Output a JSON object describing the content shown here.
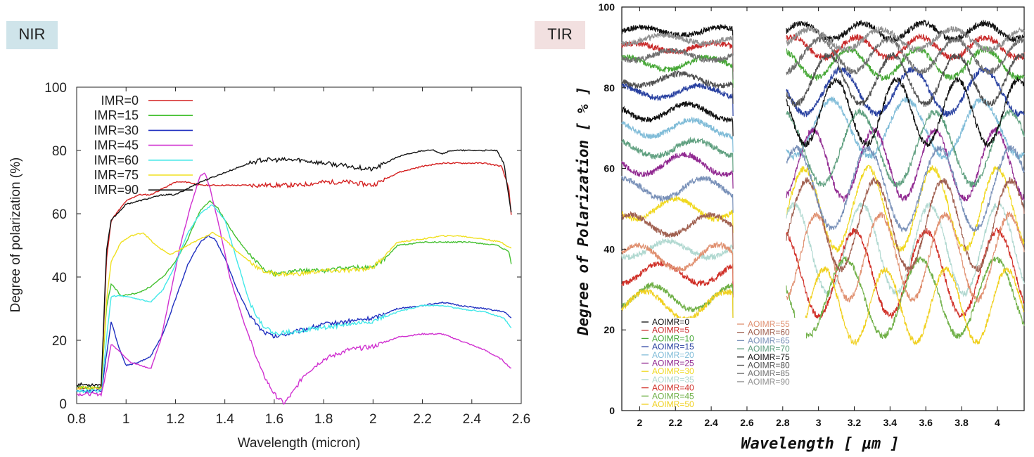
{
  "labels": {
    "nir": "NIR",
    "tir": "TIR"
  },
  "colors": {
    "nir_label_bg": "#cfe4ea",
    "tir_label_bg": "#f2e0e0"
  },
  "chart_data": [
    {
      "type": "line",
      "panel": "NIR",
      "xlabel": "Wavelength (micron)",
      "ylabel": "Degree of polarization (%)",
      "xlim": [
        0.8,
        2.6
      ],
      "ylim": [
        0,
        100
      ],
      "xticks": [
        "0.8",
        "1",
        "1.2",
        "1.4",
        "1.6",
        "1.8",
        "2",
        "2.2",
        "2.4",
        "2.6"
      ],
      "yticks": [
        "0",
        "20",
        "40",
        "60",
        "80",
        "100"
      ],
      "legend_position": "top-left",
      "grid": false,
      "series": [
        {
          "name": "IMR=0",
          "color": "#d42020",
          "x": [
            0.8,
            0.9,
            0.92,
            0.94,
            1.0,
            1.05,
            1.1,
            1.15,
            1.2,
            1.25,
            1.3,
            1.4,
            1.5,
            1.6,
            1.7,
            1.8,
            1.9,
            2.0,
            2.1,
            2.2,
            2.28,
            2.35,
            2.45,
            2.52,
            2.55,
            2.56
          ],
          "y": [
            5,
            5,
            45,
            58,
            64,
            66,
            66,
            68,
            70,
            70,
            69,
            69,
            69,
            69,
            69,
            70,
            70,
            69,
            73,
            75,
            76,
            76,
            76,
            75,
            68,
            59
          ]
        },
        {
          "name": "IMR=15",
          "color": "#44c030",
          "x": [
            0.8,
            0.9,
            0.92,
            0.94,
            0.98,
            1.05,
            1.1,
            1.15,
            1.2,
            1.25,
            1.3,
            1.34,
            1.37,
            1.4,
            1.45,
            1.5,
            1.55,
            1.6,
            1.7,
            1.8,
            1.9,
            2.0,
            2.05,
            2.1,
            2.2,
            2.3,
            2.4,
            2.5,
            2.55,
            2.56
          ],
          "y": [
            5,
            5,
            30,
            38,
            34,
            35,
            37,
            40,
            45,
            52,
            61,
            64,
            62,
            58,
            52,
            47,
            43,
            41,
            42,
            42,
            43,
            43,
            46,
            50,
            51,
            51,
            51,
            50,
            48,
            44
          ]
        },
        {
          "name": "IMR=30",
          "color": "#2030c0",
          "x": [
            0.8,
            0.9,
            0.92,
            0.94,
            0.97,
            1.0,
            1.05,
            1.1,
            1.15,
            1.2,
            1.25,
            1.3,
            1.33,
            1.36,
            1.4,
            1.45,
            1.5,
            1.55,
            1.6,
            1.7,
            1.8,
            1.9,
            2.0,
            2.1,
            2.2,
            2.28,
            2.35,
            2.45,
            2.53,
            2.56
          ],
          "y": [
            4,
            4,
            15,
            26,
            18,
            12,
            13,
            15,
            22,
            33,
            44,
            51,
            53,
            52,
            46,
            36,
            28,
            23,
            21,
            23,
            25,
            26,
            27,
            30,
            31,
            32,
            31,
            30,
            29,
            27
          ]
        },
        {
          "name": "IMR=45",
          "color": "#d030d0",
          "x": [
            0.8,
            0.9,
            0.92,
            0.94,
            0.98,
            1.02,
            1.06,
            1.1,
            1.14,
            1.18,
            1.22,
            1.26,
            1.3,
            1.32,
            1.34,
            1.38,
            1.42,
            1.48,
            1.55,
            1.6,
            1.64,
            1.68,
            1.72,
            1.8,
            1.9,
            2.0,
            2.1,
            2.2,
            2.28,
            2.35,
            2.45,
            2.52,
            2.56
          ],
          "y": [
            3,
            3,
            10,
            19,
            16,
            13,
            12,
            11,
            20,
            35,
            50,
            62,
            72,
            73,
            68,
            55,
            40,
            25,
            10,
            3,
            0,
            4,
            9,
            14,
            17,
            18,
            21,
            22,
            22,
            20,
            17,
            14,
            11
          ]
        },
        {
          "name": "IMR=60",
          "color": "#40e8e8",
          "x": [
            0.8,
            0.9,
            0.92,
            0.94,
            0.98,
            1.05,
            1.1,
            1.15,
            1.2,
            1.25,
            1.3,
            1.35,
            1.4,
            1.45,
            1.5,
            1.55,
            1.6,
            1.7,
            1.8,
            1.9,
            2.0,
            2.1,
            2.2,
            2.28,
            2.35,
            2.45,
            2.53,
            2.56
          ],
          "y": [
            4,
            4,
            20,
            34,
            34,
            33,
            32,
            36,
            44,
            54,
            60,
            63,
            58,
            45,
            32,
            25,
            22,
            23,
            24,
            25,
            26,
            29,
            31,
            31,
            30,
            29,
            27,
            24
          ]
        },
        {
          "name": "IMR=75",
          "color": "#f0e020",
          "x": [
            0.8,
            0.9,
            0.92,
            0.94,
            0.98,
            1.02,
            1.07,
            1.12,
            1.18,
            1.25,
            1.3,
            1.35,
            1.4,
            1.45,
            1.5,
            1.55,
            1.6,
            1.7,
            1.8,
            1.9,
            2.0,
            2.05,
            2.1,
            2.2,
            2.28,
            2.35,
            2.45,
            2.52,
            2.56
          ],
          "y": [
            5,
            5,
            32,
            45,
            51,
            53,
            54,
            50,
            47,
            50,
            52,
            54,
            52,
            48,
            45,
            42,
            41,
            41,
            42,
            42,
            43,
            47,
            51,
            52,
            53,
            53,
            52,
            51,
            49
          ]
        },
        {
          "name": "IMR=90",
          "color": "#111111",
          "x": [
            0.8,
            0.9,
            0.92,
            0.94,
            1.0,
            1.05,
            1.1,
            1.15,
            1.2,
            1.3,
            1.4,
            1.5,
            1.55,
            1.6,
            1.7,
            1.8,
            1.9,
            2.0,
            2.1,
            2.2,
            2.25,
            2.28,
            2.32,
            2.4,
            2.5,
            2.53,
            2.56
          ],
          "y": [
            6,
            6,
            48,
            58,
            63,
            64,
            65,
            66,
            66,
            70,
            73,
            76,
            77,
            77,
            77,
            76,
            75,
            74,
            78,
            80,
            80,
            79,
            80,
            80,
            80,
            76,
            60
          ]
        }
      ]
    },
    {
      "type": "line",
      "panel": "TIR",
      "xlabel": "Wavelength [ μm ]",
      "ylabel": "Degree of Polarization [ % ]",
      "xlim": [
        1.9,
        4.15
      ],
      "ylim": [
        0,
        100
      ],
      "gap": [
        2.52,
        2.82
      ],
      "xticks": [
        "2",
        "2.2",
        "2.4",
        "2.6",
        "2.8",
        "3",
        "3.2",
        "3.4",
        "3.6",
        "3.8",
        "4"
      ],
      "yticks": [
        "0",
        "20",
        "40",
        "60",
        "80",
        "100"
      ],
      "legend_position": "bottom-left",
      "grid": false,
      "series": [
        {
          "name": "AOIMR=0",
          "color": "#111111",
          "level": 94,
          "amp_left": 1.0,
          "amp_right": 2.0
        },
        {
          "name": "AOIMR=5",
          "color": "#c82828",
          "level": 90,
          "amp_left": 1.0,
          "amp_right": 2.5
        },
        {
          "name": "AOIMR=10",
          "color": "#48a838",
          "level": 86,
          "amp_left": 1.5,
          "amp_right": 3.5
        },
        {
          "name": "AOIMR=15",
          "color": "#2840a0",
          "level": 79,
          "amp_left": 1.5,
          "amp_right": 5.5
        },
        {
          "name": "AOIMR=20",
          "color": "#80bcd8",
          "level": 70,
          "amp_left": 2.0,
          "amp_right": 7.0
        },
        {
          "name": "AOIMR=25",
          "color": "#902890",
          "level": 61,
          "amp_left": 2.5,
          "amp_right": 8.5
        },
        {
          "name": "AOIMR=30",
          "color": "#f0d820",
          "level": 50,
          "amp_left": 2.5,
          "amp_right": 10.0
        },
        {
          "name": "AOIMR=35",
          "color": "#b0d8d0",
          "level": 40,
          "amp_left": 2.0,
          "amp_right": 11.0
        },
        {
          "name": "AOIMR=40",
          "color": "#d03028",
          "level": 34,
          "amp_left": 2.5,
          "amp_right": 10.5
        },
        {
          "name": "AOIMR=45",
          "color": "#70b048",
          "level": 28,
          "amp_left": 3.0,
          "amp_right": 9.5
        },
        {
          "name": "AOIMR=50",
          "color": "#f0d020",
          "level": 26,
          "amp_left": 3.5,
          "amp_right": 9.0
        },
        {
          "name": "AOIMR=55",
          "color": "#e09070",
          "level": 38,
          "amp_left": 3.0,
          "amp_right": 10.5
        },
        {
          "name": "AOIMR=60",
          "color": "#a06050",
          "level": 46,
          "amp_left": 2.5,
          "amp_right": 11.0
        },
        {
          "name": "AOIMR=65",
          "color": "#7890b8",
          "level": 55,
          "amp_left": 2.5,
          "amp_right": 10.0
        },
        {
          "name": "AOIMR=70",
          "color": "#60a080",
          "level": 65,
          "amp_left": 2.0,
          "amp_right": 9.0
        },
        {
          "name": "AOIMR=75",
          "color": "#111111",
          "level": 74,
          "amp_left": 2.0,
          "amp_right": 8.0
        },
        {
          "name": "AOIMR=80",
          "color": "#505050",
          "level": 82,
          "amp_left": 1.5,
          "amp_right": 6.0
        },
        {
          "name": "AOIMR=85",
          "color": "#707070",
          "level": 88,
          "amp_left": 1.2,
          "amp_right": 4.0
        },
        {
          "name": "AOIMR=90",
          "color": "#909090",
          "level": 92,
          "amp_left": 1.0,
          "amp_right": 2.5
        }
      ]
    }
  ]
}
